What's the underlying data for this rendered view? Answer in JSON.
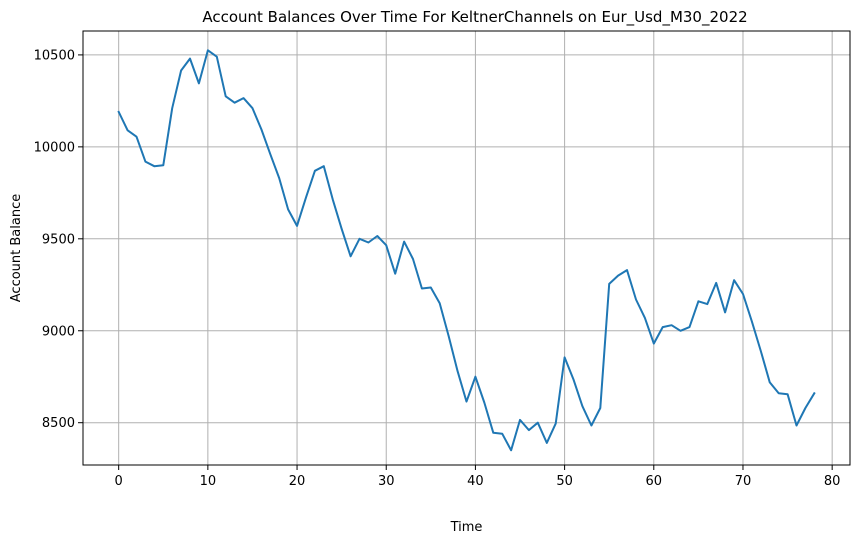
{
  "chart_data": {
    "type": "line",
    "title": "Account Balances Over Time For KeltnerChannels on Eur_Usd_M30_2022",
    "xlabel": "Time",
    "ylabel": "Account Balance",
    "xlim": [
      -4,
      82
    ],
    "ylim": [
      8270,
      10630
    ],
    "xticks": [
      0,
      10,
      20,
      30,
      40,
      50,
      60,
      70,
      80
    ],
    "yticks": [
      8500,
      9000,
      9500,
      10000,
      10500
    ],
    "grid": true,
    "series": [
      {
        "color": "#1f77b4",
        "x": [
          0,
          1,
          2,
          3,
          4,
          5,
          6,
          7,
          8,
          9,
          10,
          11,
          12,
          13,
          14,
          15,
          16,
          17,
          18,
          19,
          20,
          21,
          22,
          23,
          24,
          25,
          26,
          27,
          28,
          29,
          30,
          31,
          32,
          33,
          34,
          35,
          36,
          37,
          38,
          39,
          40,
          41,
          42,
          43,
          44,
          45,
          46,
          47,
          48,
          49,
          50,
          51,
          52,
          53,
          54,
          55,
          56,
          57,
          58,
          59,
          60,
          61,
          62,
          63,
          64,
          65,
          66,
          67,
          68,
          69,
          70,
          71,
          72,
          73,
          74,
          75,
          76,
          77,
          78
        ],
        "y": [
          10190,
          10090,
          10055,
          9920,
          9895,
          9900,
          10210,
          10415,
          10480,
          10345,
          10525,
          10490,
          10275,
          10240,
          10265,
          10210,
          10095,
          9960,
          9830,
          9660,
          9570,
          9725,
          9870,
          9895,
          9715,
          9555,
          9405,
          9500,
          9480,
          9515,
          9465,
          9310,
          9485,
          9390,
          9230,
          9235,
          9150,
          8970,
          8780,
          8615,
          8750,
          8610,
          8445,
          8440,
          8350,
          8515,
          8460,
          8500,
          8390,
          8495,
          8855,
          8735,
          8590,
          8485,
          8580,
          9255,
          9300,
          9330,
          9170,
          9070,
          8930,
          9020,
          9030,
          9000,
          9020,
          9160,
          9145,
          9260,
          9100,
          9275,
          9200,
          9050,
          8890,
          8720,
          8660,
          8655,
          8485,
          8580,
          8660
        ]
      }
    ]
  }
}
